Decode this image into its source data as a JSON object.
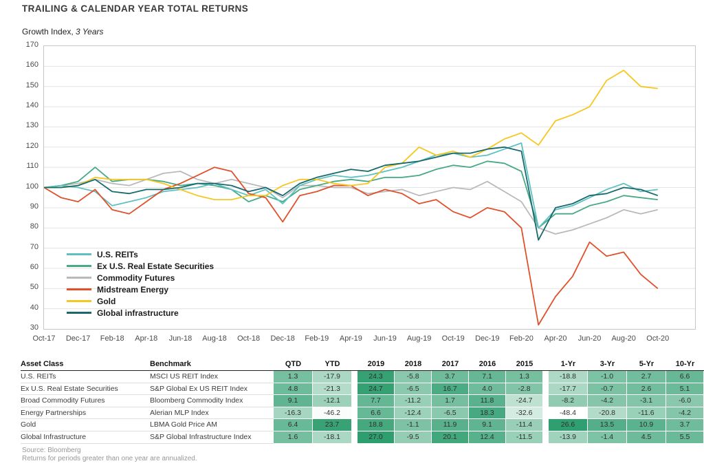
{
  "header": {
    "title": "TRAILING & CALENDAR YEAR TOTAL RETURNS"
  },
  "chart_data": {
    "type": "line",
    "subtitle_regular": "Growth Index,",
    "subtitle_italic": "3 Years",
    "ylim": [
      30,
      170
    ],
    "ytick_step": 10,
    "y_ticks": [
      170,
      160,
      150,
      140,
      130,
      120,
      110,
      100,
      90,
      80,
      70,
      60,
      50,
      40,
      30
    ],
    "x_ticklabels": [
      "Oct-17",
      "Dec-17",
      "Feb-18",
      "Apr-18",
      "Jun-18",
      "Aug-18",
      "Oct-18",
      "Dec-18",
      "Feb-19",
      "Apr-19",
      "Jun-19",
      "Aug-19",
      "Oct-19",
      "Dec-19",
      "Feb-20",
      "Apr-20",
      "Jun-20",
      "Aug-20",
      "Oct-20"
    ],
    "x": [
      "Oct-17",
      "Nov-17",
      "Dec-17",
      "Jan-18",
      "Feb-18",
      "Mar-18",
      "Apr-18",
      "May-18",
      "Jun-18",
      "Jul-18",
      "Aug-18",
      "Sep-18",
      "Oct-18",
      "Nov-18",
      "Dec-18",
      "Jan-19",
      "Feb-19",
      "Mar-19",
      "Apr-19",
      "May-19",
      "Jun-19",
      "Jul-19",
      "Aug-19",
      "Sep-19",
      "Oct-19",
      "Nov-19",
      "Dec-19",
      "Jan-20",
      "Feb-20",
      "Mar-20",
      "Apr-20",
      "May-20",
      "Jun-20",
      "Jul-20",
      "Aug-20",
      "Sep-20",
      "Oct-20"
    ],
    "grid": "horizontal",
    "legend_position": "inside-bottom-left",
    "series": [
      {
        "name": "U.S. REITs",
        "color": "#5FC0C2",
        "values": [
          100,
          101,
          100,
          98,
          91,
          93,
          95,
          98,
          99,
          100,
          102,
          99,
          96,
          99,
          92,
          101,
          104,
          106,
          105,
          106,
          108,
          110,
          113,
          116,
          117,
          115,
          116,
          119,
          122,
          80,
          89,
          91,
          95,
          99,
          102,
          98,
          99
        ]
      },
      {
        "name": "Ex U.S. Real Estate Securities",
        "color": "#48A985",
        "values": [
          100,
          101,
          103,
          110,
          103,
          104,
          104,
          103,
          101,
          102,
          101,
          99,
          93,
          96,
          93,
          99,
          101,
          103,
          104,
          103,
          105,
          105,
          106,
          109,
          111,
          110,
          113,
          112,
          108,
          80,
          87,
          87,
          91,
          93,
          96,
          95,
          94
        ]
      },
      {
        "name": "Commodity Futures",
        "color": "#B9B9B9",
        "values": [
          100,
          101,
          102,
          104,
          102,
          101,
          104,
          107,
          108,
          104,
          102,
          104,
          102,
          100,
          95,
          101,
          101,
          100,
          100,
          97,
          98,
          99,
          96,
          98,
          100,
          99,
          103,
          98,
          93,
          80,
          77,
          79,
          82,
          85,
          89,
          87,
          89
        ]
      },
      {
        "name": "Midstream Energy",
        "color": "#E0502B",
        "values": [
          100,
          95,
          93,
          99,
          89,
          87,
          93,
          99,
          102,
          106,
          110,
          108,
          97,
          95,
          83,
          96,
          98,
          101,
          101,
          96,
          99,
          97,
          92,
          94,
          88,
          85,
          90,
          88,
          80,
          32,
          46,
          56,
          73,
          66,
          68,
          57,
          50
        ]
      },
      {
        "name": "Gold",
        "color": "#F6C720",
        "values": [
          100,
          100,
          101,
          105,
          104,
          104,
          104,
          102,
          99,
          96,
          94,
          94,
          96,
          96,
          101,
          104,
          104,
          102,
          101,
          102,
          110,
          112,
          120,
          116,
          118,
          115,
          119,
          124,
          127,
          121,
          133,
          136,
          140,
          153,
          158,
          150,
          149
        ]
      },
      {
        "name": "Global infrastructure",
        "color": "#17696E",
        "values": [
          100,
          100,
          101,
          104,
          98,
          97,
          99,
          99,
          100,
          102,
          102,
          101,
          98,
          100,
          96,
          102,
          105,
          107,
          109,
          108,
          111,
          112,
          113,
          115,
          117,
          117,
          119,
          120,
          118,
          74,
          90,
          92,
          96,
          97,
          100,
          99,
          96
        ]
      }
    ],
    "draw_order": [
      2,
      1,
      0,
      3,
      4,
      5
    ]
  },
  "table": {
    "col_headers_left": [
      "Asset Class",
      "Benchmark"
    ],
    "col_headers_num": [
      "QTD",
      "YTD",
      "2019",
      "2018",
      "2017",
      "2016",
      "2015",
      "1-Yr",
      "3-Yr",
      "5-Yr",
      "10-Yr"
    ],
    "heatmap": {
      "min_value": -48.4,
      "max_value": 27.0,
      "min_color": "#FFFFFF",
      "max_color": "#2F9E6E"
    },
    "rows": [
      {
        "asset": "U.S. REITs",
        "benchmark": "MSCI US REIT Index",
        "values": [
          1.3,
          -17.9,
          24.3,
          -5.8,
          3.7,
          7.1,
          1.3,
          -18.8,
          -1.0,
          2.7,
          6.6
        ]
      },
      {
        "asset": "Ex U.S. Real Estate Securities",
        "benchmark": "S&P Global Ex US REIT Index",
        "values": [
          4.8,
          -21.3,
          24.7,
          -6.5,
          16.7,
          4.0,
          -2.8,
          -17.7,
          -0.7,
          2.6,
          5.1
        ]
      },
      {
        "asset": "Broad Commodity Futures",
        "benchmark": "Bloomberg Commodity Index",
        "values": [
          9.1,
          -12.1,
          7.7,
          -11.2,
          1.7,
          11.8,
          -24.7,
          -8.2,
          -4.2,
          -3.1,
          -6.0
        ]
      },
      {
        "asset": "Energy Partnerships",
        "benchmark": "Alerian MLP Index",
        "values": [
          -16.3,
          -46.2,
          6.6,
          -12.4,
          -6.5,
          18.3,
          -32.6,
          -48.4,
          -20.8,
          -11.6,
          -4.2
        ]
      },
      {
        "asset": "Gold",
        "benchmark": "LBMA Gold Price AM",
        "values": [
          6.4,
          23.7,
          18.8,
          -1.1,
          11.9,
          9.1,
          -11.4,
          26.6,
          13.5,
          10.9,
          3.7
        ]
      },
      {
        "asset": "Global Infrastructure",
        "benchmark": "S&P Global Infrastructure Index",
        "values": [
          1.6,
          -18.1,
          27.0,
          -9.5,
          20.1,
          12.4,
          -11.5,
          -13.9,
          -1.4,
          4.5,
          5.5
        ]
      }
    ]
  },
  "footer": {
    "source": "Source: Bloomberg",
    "note": "Returns for periods greater than one year are annualized."
  }
}
